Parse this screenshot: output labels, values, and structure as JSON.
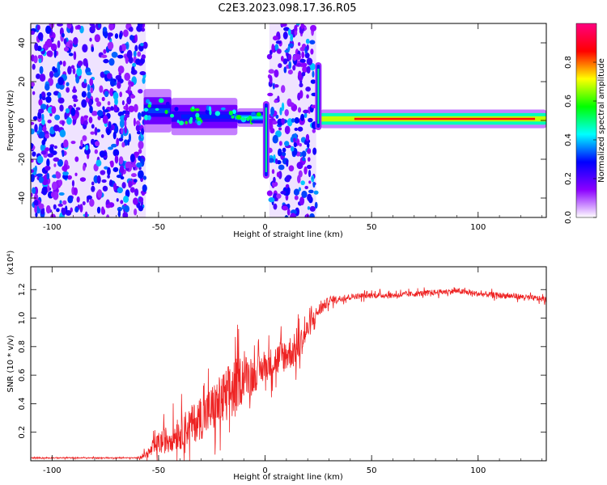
{
  "title": "C2E3.2023.098.17.36.R05",
  "chart_data": [
    {
      "type": "heatmap",
      "name": "spectrogram",
      "xlabel": "Height of straight line (km)",
      "ylabel": "Frequency (Hz)",
      "xlim": [
        -110,
        132
      ],
      "ylim": [
        -50,
        50
      ],
      "xticks": [
        -100,
        -50,
        0,
        50,
        100
      ],
      "yticks": [
        -40,
        -20,
        0,
        20,
        40
      ],
      "colorbar": {
        "label": "Normalized spectral amplitude",
        "range": [
          0,
          1
        ],
        "ticks": [
          "0.0",
          "0.2",
          "0.4",
          "0.6",
          "0.8"
        ],
        "colors": [
          "#ffffff",
          "#8b00ff",
          "#0000ff",
          "#00ffff",
          "#00ff00",
          "#ffff00",
          "#ff0000",
          "#ff0080"
        ]
      },
      "noise_regions": [
        [
          -110,
          -56
        ],
        [
          2,
          24
        ]
      ],
      "signal_band": {
        "segments": [
          {
            "x": [
              -57,
              -44
            ],
            "center_hz": 5,
            "width_hz": 7,
            "amplitude": 0.32
          },
          {
            "x": [
              -44,
              -13
            ],
            "center_hz": 2,
            "width_hz": 6,
            "amplitude": 0.3
          },
          {
            "x": [
              -13,
              0
            ],
            "center_hz": 1.5,
            "width_hz": 3,
            "amplitude": 0.45
          },
          {
            "x": [
              26,
              132
            ],
            "center_hz": 0.8,
            "width_hz": 3,
            "amplitude": 0.85
          }
        ],
        "spikes": [
          {
            "x": 0.5,
            "hz": [
              -30,
              10
            ]
          },
          {
            "x": 25,
            "hz": [
              -5,
              30
            ]
          }
        ]
      }
    },
    {
      "type": "line",
      "name": "snr",
      "xlabel": "Height of straight line (km)",
      "ylabel": "SNR (10 * v/v)",
      "scale_label": "(x10⁴)",
      "xlim": [
        -110,
        132
      ],
      "ylim": [
        0,
        1.36
      ],
      "xticks": [
        -100,
        -50,
        0,
        50,
        100
      ],
      "yticks": [
        "0.2",
        "0.4",
        "0.6",
        "0.8",
        "1.0",
        "1.2"
      ],
      "color": "#ee2222",
      "profile": {
        "x": [
          -110,
          -60,
          -55,
          -50,
          -40,
          -30,
          -20,
          -15,
          -10,
          -5,
          0,
          5,
          10,
          15,
          20,
          25,
          30,
          40,
          50,
          60,
          70,
          80,
          90,
          100,
          110,
          120,
          132
        ],
        "mean": [
          0.02,
          0.02,
          0.05,
          0.12,
          0.2,
          0.3,
          0.42,
          0.5,
          0.6,
          0.6,
          0.66,
          0.7,
          0.75,
          0.78,
          0.92,
          1.05,
          1.12,
          1.15,
          1.16,
          1.16,
          1.17,
          1.18,
          1.19,
          1.17,
          1.16,
          1.15,
          1.13
        ],
        "noise": [
          0.004,
          0.004,
          0.03,
          0.08,
          0.12,
          0.15,
          0.2,
          0.22,
          0.15,
          0.12,
          0.1,
          0.12,
          0.12,
          0.12,
          0.08,
          0.05,
          0.03,
          0.02,
          0.02,
          0.02,
          0.02,
          0.02,
          0.02,
          0.02,
          0.02,
          0.02,
          0.02
        ]
      }
    }
  ]
}
